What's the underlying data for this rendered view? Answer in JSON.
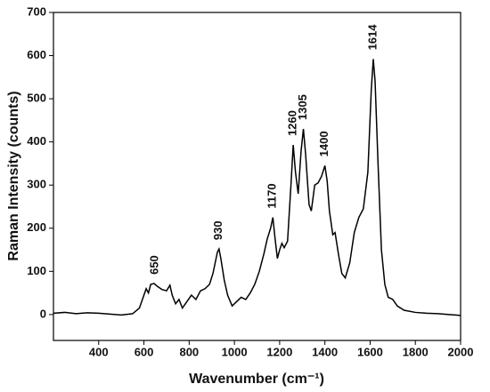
{
  "chart_data": {
    "type": "line",
    "x_label": "Wavenumber (cm⁻¹)",
    "y_label": "Raman Intensity (counts)",
    "annotations": [
      "650",
      "930",
      "1170",
      "1260",
      "1305",
      "1400",
      "1614"
    ],
    "xlim": [
      200,
      2000
    ],
    "xticks": [
      400,
      600,
      800,
      1000,
      1200,
      1400,
      1600,
      1800,
      2000
    ],
    "ylim": [
      -60,
      700
    ],
    "yticks": [
      0,
      100,
      200,
      300,
      400,
      500,
      600,
      700
    ],
    "series": [
      {
        "color": "#000000",
        "x": [
          200,
          250,
          300,
          350,
          400,
          450,
          500,
          550,
          580,
          600,
          610,
          620,
          630,
          645,
          660,
          680,
          700,
          715,
          725,
          740,
          755,
          770,
          790,
          810,
          830,
          850,
          870,
          890,
          905,
          915,
          925,
          932,
          940,
          955,
          970,
          990,
          1010,
          1030,
          1050,
          1070,
          1090,
          1110,
          1130,
          1145,
          1160,
          1170,
          1180,
          1190,
          1200,
          1210,
          1220,
          1235,
          1250,
          1260,
          1270,
          1282,
          1295,
          1305,
          1315,
          1330,
          1340,
          1355,
          1370,
          1385,
          1400,
          1410,
          1420,
          1435,
          1445,
          1460,
          1475,
          1490,
          1510,
          1530,
          1550,
          1570,
          1590,
          1605,
          1614,
          1622,
          1635,
          1650,
          1665,
          1680,
          1700,
          1720,
          1750,
          1800,
          1850,
          1900,
          1950,
          2000
        ],
        "values": [
          3,
          5,
          2,
          4,
          3,
          1,
          -1,
          2,
          15,
          45,
          60,
          50,
          70,
          72,
          65,
          58,
          55,
          68,
          45,
          25,
          35,
          15,
          30,
          45,
          35,
          55,
          60,
          70,
          95,
          120,
          145,
          152,
          130,
          80,
          45,
          20,
          30,
          40,
          35,
          50,
          70,
          100,
          140,
          175,
          200,
          225,
          175,
          130,
          150,
          165,
          155,
          170,
          300,
          393,
          330,
          280,
          380,
          430,
          370,
          255,
          240,
          300,
          305,
          320,
          345,
          310,
          240,
          185,
          190,
          140,
          95,
          85,
          120,
          190,
          225,
          245,
          330,
          520,
          592,
          540,
          350,
          150,
          70,
          40,
          35,
          20,
          10,
          5,
          3,
          2,
          0,
          -2
        ]
      }
    ]
  }
}
